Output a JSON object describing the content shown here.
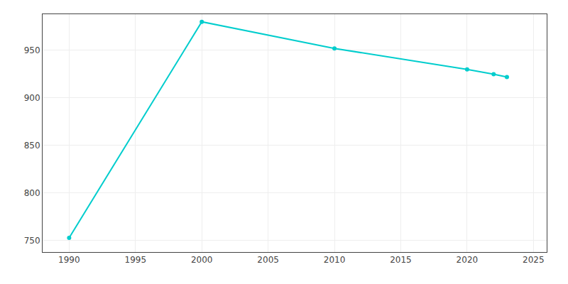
{
  "chart_data": {
    "type": "line",
    "x": [
      1990,
      2000,
      2010,
      2020,
      2022,
      2023
    ],
    "values": [
      753,
      980,
      952,
      930,
      925,
      922
    ],
    "color": "#00CDCD",
    "marker": "circle",
    "xlim": [
      1988,
      2026
    ],
    "ylim": [
      738,
      988
    ],
    "xticks": [
      1990,
      1995,
      2000,
      2005,
      2010,
      2015,
      2020,
      2025
    ],
    "yticks": [
      750,
      800,
      850,
      900,
      950
    ],
    "grid": true
  }
}
